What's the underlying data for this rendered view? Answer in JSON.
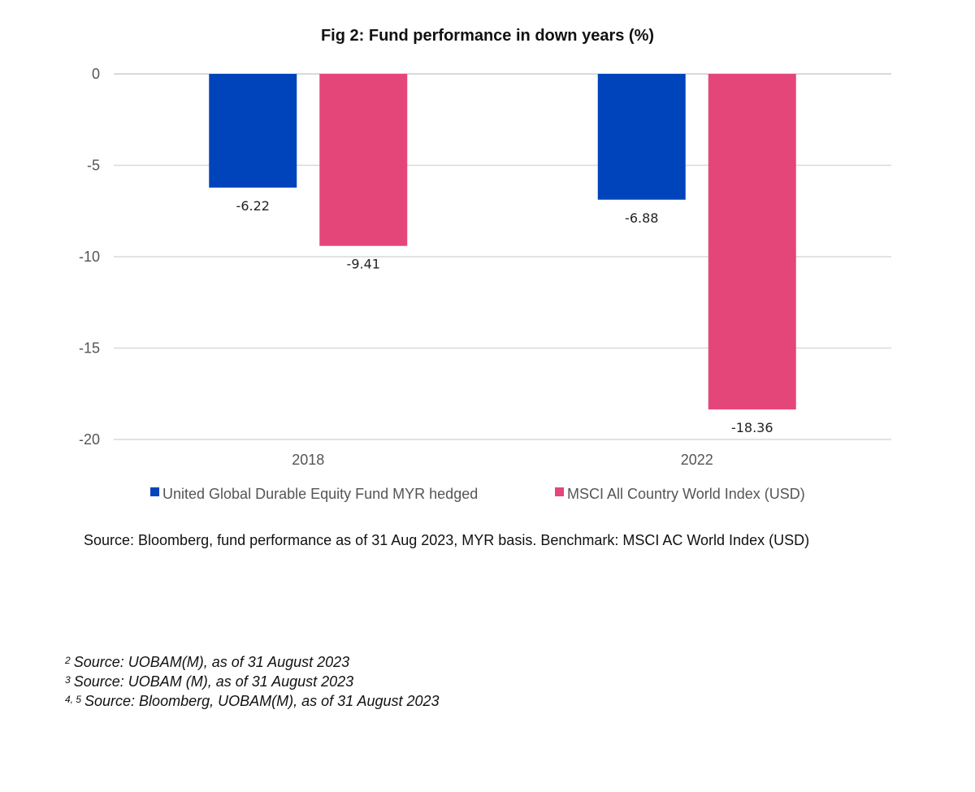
{
  "chart_data": {
    "type": "bar",
    "title": "Fig 2: Fund performance in down years (%)",
    "categories": [
      "2018",
      "2022"
    ],
    "series": [
      {
        "name": "United Global Durable Equity Fund MYR hedged",
        "values": [
          -6.22,
          -6.88
        ],
        "color": "#0044BB"
      },
      {
        "name": "MSCI All Country World Index (USD)",
        "values": [
          -9.41,
          -18.36
        ],
        "color": "#E5467A"
      }
    ],
    "data_labels": [
      [
        "-6.22",
        "-6.88"
      ],
      [
        "-9.41",
        "-18.36"
      ]
    ],
    "yticks": [
      0,
      -5,
      -10,
      -15,
      -20
    ],
    "ylim": [
      -20,
      0
    ],
    "xlabel": "",
    "ylabel": "",
    "grid": true,
    "legend_position": "bottom"
  },
  "source_text": "Source: Bloomberg, fund performance as of 31 Aug 2023, MYR basis. Benchmark: MSCI AC World Index (USD)",
  "footnotes": [
    {
      "mark": "2",
      "text": "Source: UOBAM(M), as of 31 August 2023"
    },
    {
      "mark": "3",
      "text": "Source: UOBAM (M), as of 31 August 2023"
    },
    {
      "mark": "4, 5",
      "text": "Source: Bloomberg, UOBAM(M), as of 31 August 2023"
    }
  ],
  "colors": {
    "gridline": "#D9D9D9",
    "fund": "#0044BB",
    "index": "#E5467A"
  }
}
